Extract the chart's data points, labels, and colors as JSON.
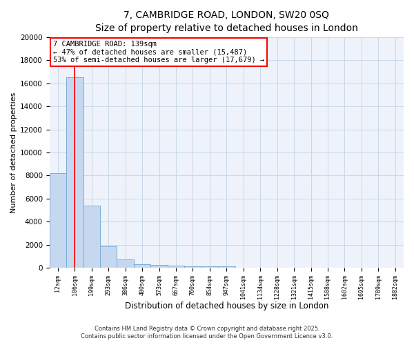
{
  "title_line1": "7, CAMBRIDGE ROAD, LONDON, SW20 0SQ",
  "title_line2": "Size of property relative to detached houses in London",
  "xlabel": "Distribution of detached houses by size in London",
  "ylabel": "Number of detached properties",
  "bar_color": "#c5d8f0",
  "bar_edge_color": "#7aadd4",
  "categories": [
    "12sqm",
    "106sqm",
    "199sqm",
    "293sqm",
    "386sqm",
    "480sqm",
    "573sqm",
    "667sqm",
    "760sqm",
    "854sqm",
    "947sqm",
    "1041sqm",
    "1134sqm",
    "1228sqm",
    "1321sqm",
    "1415sqm",
    "1508sqm",
    "1602sqm",
    "1695sqm",
    "1789sqm",
    "1882sqm"
  ],
  "values": [
    8200,
    16500,
    5400,
    1850,
    700,
    300,
    220,
    170,
    130,
    120,
    110,
    0,
    0,
    0,
    0,
    0,
    0,
    0,
    0,
    0,
    0
  ],
  "red_line_x": 1.0,
  "annotation_line1": "7 CAMBRIDGE ROAD: 139sqm",
  "annotation_line2": "← 47% of detached houses are smaller (15,487)",
  "annotation_line3": "53% of semi-detached houses are larger (17,679) →",
  "ylim": [
    0,
    20000
  ],
  "yticks": [
    0,
    2000,
    4000,
    6000,
    8000,
    10000,
    12000,
    14000,
    16000,
    18000,
    20000
  ],
  "grid_color": "#c8d8e8",
  "bg_color": "#eef2fa",
  "footer_line1": "Contains HM Land Registry data © Crown copyright and database right 2025.",
  "footer_line2": "Contains public sector information licensed under the Open Government Licence v3.0."
}
